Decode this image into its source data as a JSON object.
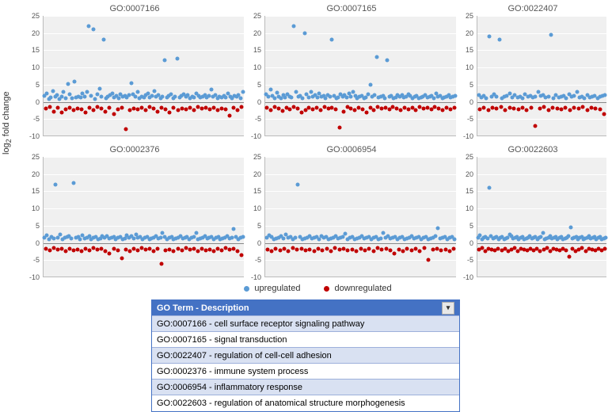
{
  "ylabel_html": "log₂ fold change",
  "ylim": [
    -10,
    25
  ],
  "yticks": [
    -10,
    -5,
    0,
    5,
    10,
    15,
    20,
    25
  ],
  "grid_color": "#ffffff",
  "plot_bg": "#f0f0f0",
  "zero_color": "#888888",
  "marker_size": 5,
  "colors": {
    "up": "#5b9bd5",
    "down": "#c00000"
  },
  "legend": [
    {
      "label": "upregulated",
      "color": "#5b9bd5"
    },
    {
      "label": "downregulated",
      "color": "#c00000"
    }
  ],
  "panels": [
    {
      "title": "GO:0007166",
      "up": [
        1.8,
        2.4,
        0.8,
        1.2,
        3.1,
        1.6,
        2.0,
        0.9,
        1.4,
        2.8,
        1.1,
        5.2,
        2.2,
        1.0,
        6.0,
        1.3,
        1.6,
        1.2,
        2.4,
        1.5,
        3.0,
        22.0,
        1.8,
        21.0,
        0.9,
        2.2,
        3.8,
        1.4,
        18.0,
        1.1,
        1.6,
        2.0,
        2.5,
        1.3,
        1.8,
        1.0,
        2.1,
        1.4,
        1.7,
        1.2,
        1.9,
        5.5,
        2.3,
        1.5,
        2.8,
        1.1,
        1.6,
        1.3,
        1.9,
        2.4,
        1.2,
        1.7,
        3.2,
        1.4,
        2.0,
        1.1,
        1.6,
        12.0,
        1.3,
        1.8,
        2.2,
        1.0,
        1.5,
        12.5,
        1.2,
        1.7,
        2.1,
        1.4,
        1.9,
        1.1,
        1.6,
        1.3,
        2.5,
        1.8,
        1.2,
        1.5,
        2.0,
        1.3,
        1.7,
        3.5,
        1.4,
        1.9,
        1.1,
        1.6,
        1.3,
        1.8,
        1.2,
        2.4,
        1.5,
        1.0,
        1.7,
        1.4,
        1.9,
        1.1,
        2.8
      ],
      "down": [
        -2.0,
        -1.5,
        -2.8,
        -1.8,
        -3.2,
        -2.2,
        -1.6,
        -2.5,
        -1.9,
        -2.1,
        -3.0,
        -1.7,
        -2.4,
        -1.5,
        -2.0,
        -2.8,
        -1.8,
        -3.5,
        -2.2,
        -1.6,
        -8.0,
        -2.5,
        -1.9,
        -2.1,
        -1.7,
        -2.4,
        -1.5,
        -2.0,
        -2.8,
        -1.8,
        -2.2,
        -3.0,
        -1.6,
        -2.5,
        -1.9,
        -2.1,
        -1.7,
        -2.4,
        -1.5,
        -2.0,
        -1.8,
        -2.2,
        -1.6,
        -2.5,
        -1.9,
        -2.1,
        -4.0,
        -1.7,
        -2.4,
        -1.5
      ]
    },
    {
      "title": "GO:0007165",
      "up": [
        2.1,
        1.4,
        3.5,
        1.8,
        1.1,
        2.6,
        1.5,
        1.0,
        1.9,
        1.3,
        2.3,
        1.6,
        1.2,
        22.0,
        2.8,
        1.4,
        1.7,
        1.0,
        20.0,
        2.1,
        1.3,
        3.0,
        1.6,
        1.9,
        1.2,
        2.4,
        1.5,
        1.8,
        1.1,
        2.0,
        1.4,
        18.0,
        1.7,
        1.0,
        1.3,
        2.2,
        1.6,
        1.9,
        1.2,
        2.5,
        1.5,
        2.8,
        1.8,
        1.1,
        1.4,
        1.7,
        1.0,
        1.3,
        2.1,
        5.0,
        1.6,
        1.9,
        13.0,
        1.2,
        1.5,
        1.8,
        1.1,
        12.0,
        1.4,
        1.7,
        1.0,
        1.3,
        2.0,
        1.6,
        1.9,
        1.2,
        1.5,
        2.3,
        1.8,
        1.1,
        1.4,
        1.7,
        1.0,
        1.3,
        1.6,
        1.9,
        1.2,
        1.5,
        1.8,
        1.1,
        2.5,
        1.4,
        1.7,
        1.0,
        1.3,
        1.6,
        1.9,
        1.2,
        1.5,
        1.8
      ],
      "down": [
        -1.8,
        -2.3,
        -1.5,
        -2.0,
        -2.6,
        -1.7,
        -2.2,
        -1.4,
        -1.9,
        -3.0,
        -2.5,
        -1.6,
        -2.1,
        -1.8,
        -2.3,
        -1.5,
        -2.0,
        -1.7,
        -2.2,
        -7.5,
        -2.8,
        -1.4,
        -1.9,
        -2.5,
        -1.6,
        -2.1,
        -3.2,
        -1.8,
        -2.3,
        -1.5,
        -2.0,
        -1.7,
        -2.2,
        -1.4,
        -1.9,
        -2.5,
        -1.6,
        -2.1,
        -1.8,
        -2.3,
        -1.5,
        -2.0,
        -1.7,
        -2.2,
        -1.4,
        -1.9,
        -2.5,
        -1.6,
        -2.1,
        -1.8
      ]
    },
    {
      "title": "GO:0022407",
      "up": [
        2.0,
        1.3,
        1.8,
        1.1,
        19.0,
        1.5,
        2.2,
        1.6,
        18.0,
        1.0,
        1.4,
        1.7,
        2.5,
        1.2,
        1.9,
        1.3,
        1.6,
        1.0,
        2.1,
        1.5,
        1.8,
        1.2,
        1.4,
        2.8,
        1.7,
        2.0,
        1.3,
        1.6,
        19.5,
        1.0,
        1.9,
        1.2,
        1.5,
        1.8,
        1.1,
        2.3,
        1.4,
        1.7,
        3.0,
        1.3,
        1.6,
        1.0,
        1.9,
        1.2,
        1.5,
        1.8,
        1.1,
        1.4,
        1.7,
        2.0
      ],
      "down": [
        -2.1,
        -1.6,
        -2.4,
        -1.8,
        -2.0,
        -1.5,
        -2.3,
        -1.7,
        -1.9,
        -2.2,
        -1.6,
        -2.5,
        -1.8,
        -7.0,
        -2.0,
        -1.5,
        -2.3,
        -1.7,
        -1.9,
        -2.2,
        -1.6,
        -2.4,
        -1.8,
        -2.0,
        -1.5,
        -2.3,
        -1.7,
        -1.9,
        -2.2,
        -3.5
      ]
    },
    {
      "title": "GO:0002376",
      "up": [
        1.5,
        2.2,
        1.0,
        1.8,
        1.3,
        17.0,
        1.6,
        2.5,
        1.1,
        1.4,
        1.7,
        2.0,
        1.2,
        17.5,
        1.5,
        1.8,
        1.0,
        2.3,
        1.3,
        1.6,
        1.9,
        1.1,
        1.4,
        1.7,
        1.0,
        1.3,
        2.0,
        1.6,
        1.9,
        1.2,
        1.5,
        1.8,
        1.1,
        1.4,
        1.7,
        1.0,
        1.3,
        2.2,
        1.6,
        1.9,
        1.2,
        2.5,
        1.5,
        1.8,
        1.1,
        1.4,
        1.7,
        1.0,
        1.3,
        1.6,
        1.9,
        1.2,
        1.5,
        3.0,
        1.8,
        1.1,
        1.4,
        1.7,
        1.0,
        1.3,
        1.6,
        1.9,
        1.2,
        1.5,
        1.8,
        1.1,
        1.4,
        1.7,
        2.8,
        1.0,
        1.3,
        1.6,
        1.9,
        1.2,
        1.5,
        1.8,
        1.1,
        1.4,
        1.7,
        1.0,
        1.3,
        1.6,
        1.9,
        1.2,
        1.5,
        4.0,
        1.8,
        1.1,
        1.4,
        1.7
      ],
      "down": [
        -1.7,
        -2.2,
        -1.5,
        -2.0,
        -1.8,
        -2.3,
        -1.6,
        -2.1,
        -1.9,
        -2.4,
        -1.7,
        -2.2,
        -1.5,
        -2.0,
        -1.8,
        -2.3,
        -3.0,
        -1.6,
        -2.1,
        -4.5,
        -1.9,
        -2.4,
        -1.7,
        -2.2,
        -1.5,
        -2.0,
        -1.8,
        -2.3,
        -1.6,
        -6.0,
        -2.1,
        -1.9,
        -2.4,
        -1.7,
        -2.2,
        -1.5,
        -2.0,
        -1.8,
        -2.3,
        -1.6,
        -2.1,
        -1.9,
        -2.4,
        -1.7,
        -2.2,
        -1.5,
        -2.0,
        -1.8,
        -2.3,
        -3.5
      ]
    },
    {
      "title": "GO:0006954",
      "up": [
        1.4,
        2.1,
        1.7,
        1.0,
        1.3,
        1.6,
        1.9,
        1.2,
        2.4,
        1.5,
        1.8,
        1.1,
        1.4,
        17.0,
        1.7,
        1.0,
        1.3,
        1.6,
        1.9,
        1.2,
        1.5,
        1.8,
        1.1,
        2.0,
        1.4,
        1.7,
        1.0,
        1.3,
        1.6,
        1.9,
        1.2,
        1.5,
        1.8,
        2.6,
        1.1,
        1.4,
        1.7,
        1.0,
        1.3,
        1.6,
        1.9,
        1.2,
        1.5,
        1.8,
        1.1,
        1.4,
        1.7,
        1.0,
        1.3,
        3.0,
        1.6,
        1.9,
        1.2,
        1.5,
        1.8,
        1.1,
        1.4,
        1.7,
        1.0,
        1.3,
        1.6,
        1.9,
        1.2,
        1.5,
        1.8,
        1.1,
        1.4,
        1.7,
        1.0,
        1.3,
        1.6,
        1.9,
        4.2,
        1.2,
        1.5,
        1.8,
        1.1,
        1.4,
        1.7,
        1.0
      ],
      "down": [
        -1.9,
        -2.4,
        -1.6,
        -2.1,
        -1.8,
        -2.3,
        -1.5,
        -2.0,
        -1.7,
        -2.2,
        -1.9,
        -2.4,
        -1.6,
        -2.1,
        -1.8,
        -2.3,
        -1.5,
        -2.0,
        -1.7,
        -2.2,
        -1.9,
        -2.4,
        -1.6,
        -2.1,
        -1.8,
        -2.3,
        -1.5,
        -2.0,
        -1.7,
        -2.2,
        -3.0,
        -1.9,
        -2.4,
        -1.6,
        -2.1,
        -1.8,
        -2.3,
        -1.5,
        -5.0,
        -2.0,
        -1.7,
        -2.2,
        -1.9,
        -2.4,
        -1.6
      ]
    },
    {
      "title": "GO:0022603",
      "up": [
        1.6,
        2.3,
        1.0,
        1.4,
        1.7,
        1.3,
        16.0,
        1.9,
        1.2,
        1.5,
        1.8,
        1.1,
        1.4,
        1.7,
        1.0,
        1.3,
        1.6,
        2.5,
        1.9,
        1.2,
        1.5,
        1.8,
        1.1,
        1.4,
        1.7,
        1.0,
        1.3,
        1.6,
        1.9,
        1.2,
        1.5,
        1.8,
        1.1,
        1.4,
        1.7,
        3.0,
        1.0,
        1.3,
        1.6,
        1.9,
        1.2,
        1.5,
        1.8,
        1.1,
        1.4,
        1.7,
        1.0,
        1.3,
        1.6,
        1.9,
        4.5,
        1.2,
        1.5,
        1.8,
        1.1,
        1.4,
        1.7,
        1.0,
        1.3,
        1.6,
        1.9,
        1.2,
        1.5,
        1.8,
        1.1,
        1.4,
        1.7,
        1.0,
        1.3,
        1.6
      ],
      "down": [
        -2.0,
        -1.5,
        -2.3,
        -1.7,
        -1.9,
        -2.2,
        -1.6,
        -2.1,
        -1.8,
        -2.4,
        -2.0,
        -1.5,
        -2.3,
        -1.7,
        -1.9,
        -2.2,
        -1.6,
        -2.1,
        -1.8,
        -2.4,
        -2.0,
        -1.5,
        -2.3,
        -1.7,
        -1.9,
        -2.2,
        -1.6,
        -2.1,
        -4.0,
        -1.8,
        -2.4,
        -2.0,
        -1.5,
        -2.3,
        -1.7,
        -1.9,
        -2.2,
        -1.6,
        -2.1,
        -1.8
      ]
    }
  ],
  "table": {
    "header": "GO Term - Description",
    "header_bg": "#4472c4",
    "header_fg": "#ffffff",
    "row_alt_bg": [
      "#d9e1f2",
      "#ffffff"
    ],
    "border_color": "#9db0db",
    "rows": [
      "GO:0007166 - cell surface receptor signaling pathway",
      "GO:0007165 - signal transduction",
      "GO:0022407 - regulation of cell-cell adhesion",
      "GO:0002376 - immune system process",
      "GO:0006954 - inflammatory response",
      "GO:0022603 - regulation of anatomical structure morphogenesis"
    ]
  }
}
